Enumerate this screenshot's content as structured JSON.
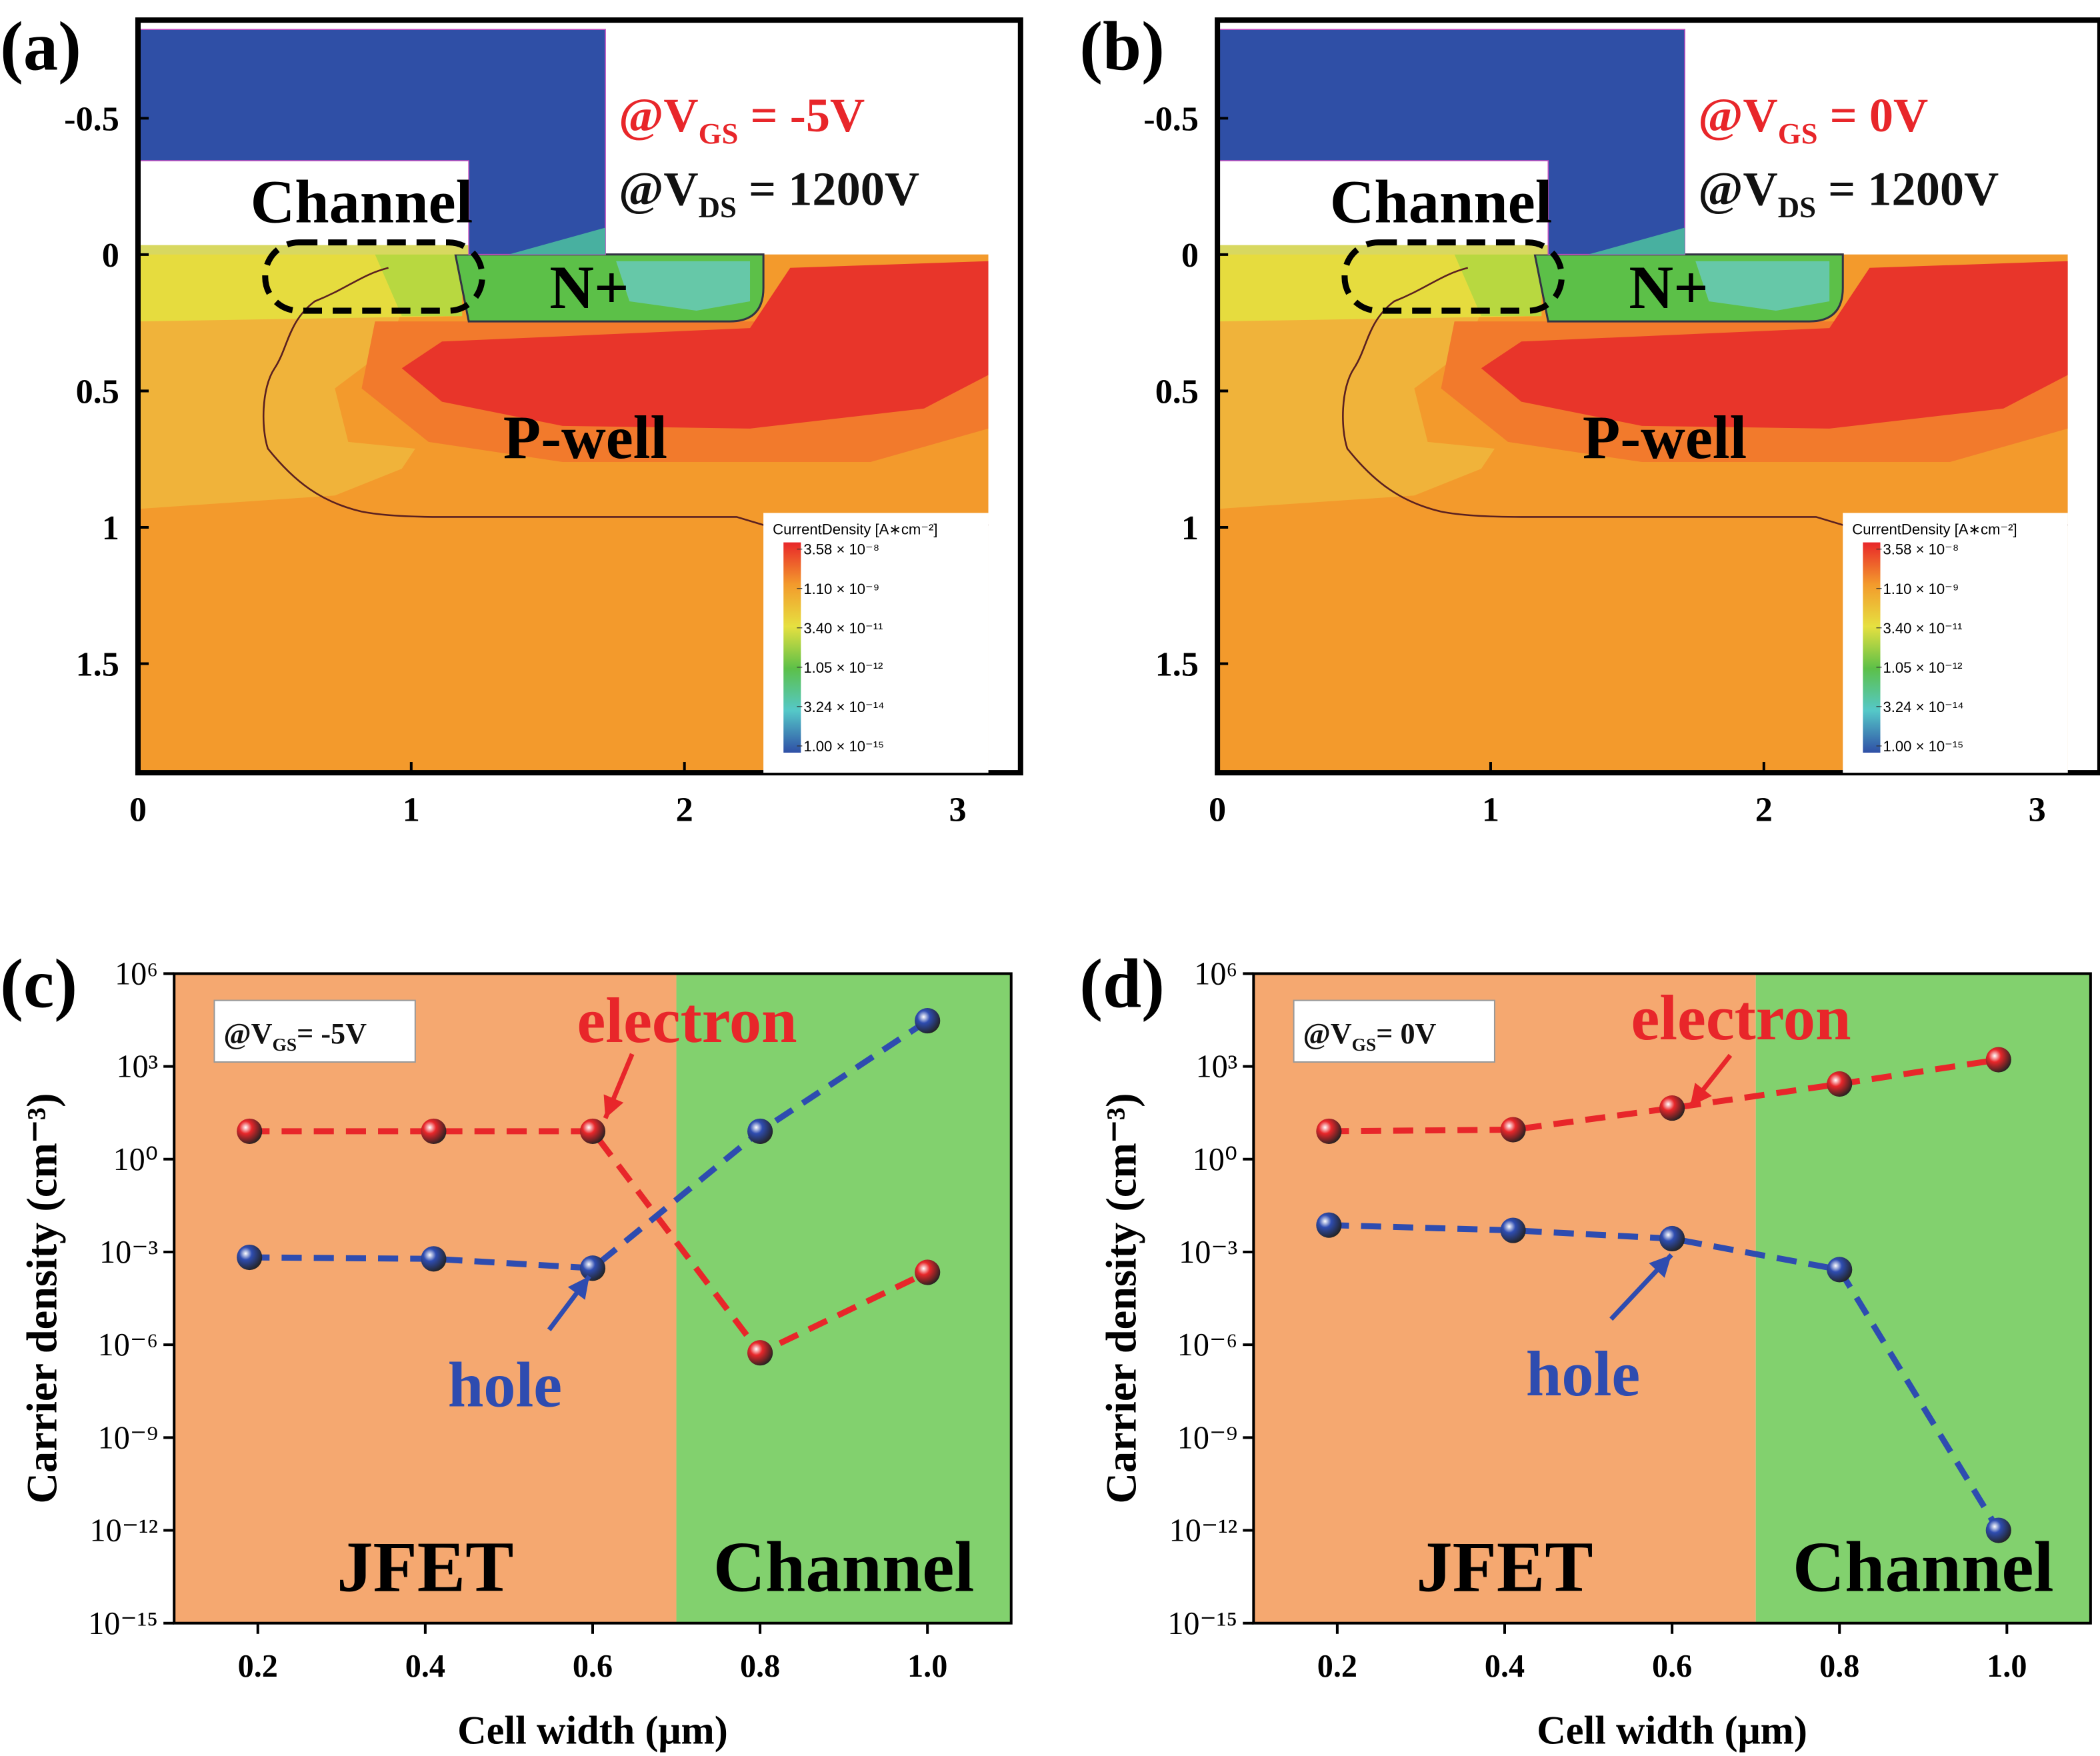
{
  "chart_data": [
    {
      "type": "contour",
      "panel_label": "(a)",
      "xlim": [
        0,
        3.23
      ],
      "ylim": [
        -0.86,
        1.9
      ],
      "xticks": [
        0,
        1,
        2,
        3
      ],
      "yticks": [
        -0.5,
        0,
        0.5,
        1,
        1.5
      ],
      "region_labels": [
        "Channel",
        "N+",
        "P-well"
      ],
      "bias_labels": [
        {
          "parts": [
            "@V",
            "GS",
            " = -5V"
          ],
          "color": "#e8262a"
        },
        {
          "parts": [
            "@V",
            "DS",
            " = 1200V"
          ],
          "color": "#111111"
        }
      ],
      "colorbar": {
        "title": "CurrentDensity [A∗cm⁻²]",
        "colors": [
          "#e8262a",
          "#f39a2c",
          "#e6e040",
          "#5cc048",
          "#55c8c8",
          "#2f4fa6"
        ],
        "ticks": [
          {
            "value": 3.58e-08,
            "label": "3.58 × 10⁻⁸"
          },
          {
            "value": 1.1e-09,
            "label": "1.10 × 10⁻⁹"
          },
          {
            "value": 3.4e-11,
            "label": "3.40 × 10⁻¹¹"
          },
          {
            "value": 1.05e-12,
            "label": "1.05 × 10⁻¹²"
          },
          {
            "value": 3.24e-14,
            "label": "3.24 × 10⁻¹⁴"
          },
          {
            "value": 1e-15,
            "label": "1.00 × 10⁻¹⁵"
          }
        ]
      }
    },
    {
      "type": "contour",
      "panel_label": "(b)",
      "xlim": [
        0,
        3.23
      ],
      "ylim": [
        -0.86,
        1.9
      ],
      "xticks": [
        0,
        1,
        2,
        3
      ],
      "yticks": [
        -0.5,
        0,
        0.5,
        1,
        1.5
      ],
      "region_labels": [
        "Channel",
        "N+",
        "P-well"
      ],
      "bias_labels": [
        {
          "parts": [
            "@V",
            "GS",
            " = 0V"
          ],
          "color": "#e8262a"
        },
        {
          "parts": [
            "@V",
            "DS",
            " = 1200V"
          ],
          "color": "#111111"
        }
      ],
      "colorbar": {
        "title": "CurrentDensity [A∗cm⁻²]",
        "colors": [
          "#e8262a",
          "#f39a2c",
          "#e6e040",
          "#5cc048",
          "#55c8c8",
          "#2f4fa6"
        ],
        "ticks": [
          {
            "value": 3.58e-08,
            "label": "3.58 × 10⁻⁸"
          },
          {
            "value": 1.1e-09,
            "label": "1.10 × 10⁻⁹"
          },
          {
            "value": 3.4e-11,
            "label": "3.40 × 10⁻¹¹"
          },
          {
            "value": 1.05e-12,
            "label": "1.05 × 10⁻¹²"
          },
          {
            "value": 3.24e-14,
            "label": "3.24 × 10⁻¹⁴"
          },
          {
            "value": 1e-15,
            "label": "1.00 × 10⁻¹⁵"
          }
        ]
      }
    },
    {
      "type": "line",
      "panel_label": "(c)",
      "xlabel": "Cell width (μm)",
      "ylabel": "Carrier density (cm⁻³)",
      "log_y": true,
      "xlim": [
        0.1,
        1.1
      ],
      "ylim": [
        1e-15,
        1000000.0
      ],
      "xticks": [
        0.2,
        0.4,
        0.6,
        0.8,
        {
          "value": 1,
          "label": "1.0"
        }
      ],
      "yticks": [
        {
          "value": 1e-15,
          "label": "10⁻¹⁵"
        },
        {
          "value": 1e-12,
          "label": "10⁻¹²"
        },
        {
          "value": 1e-09,
          "label": "10⁻⁹"
        },
        {
          "value": 1e-06,
          "label": "10⁻⁶"
        },
        {
          "value": 0.001,
          "label": "10⁻³"
        },
        {
          "value": 1,
          "label": "10⁰"
        },
        {
          "value": 1000.0,
          "label": "10³"
        },
        {
          "value": 1000000.0,
          "label": "10⁶"
        }
      ],
      "regions": [
        {
          "name": "JFET",
          "from": 0.1,
          "to": 0.7,
          "color": "#f5a870"
        },
        {
          "name": "Channel",
          "from": 0.7,
          "to": 1.1,
          "color": "#82d16e"
        }
      ],
      "annotation": [
        "@V",
        "GS",
        "= -5V"
      ],
      "x": [
        0.19,
        0.41,
        0.6,
        0.8,
        1.0
      ],
      "series": [
        {
          "name": "electron",
          "color": "#e8262a",
          "values": [
            8,
            8,
            8,
            5.5e-07,
            0.00022
          ]
        },
        {
          "name": "hole",
          "color": "#2e4cb0",
          "values": [
            0.00067,
            0.0006,
            0.0003,
            8,
            30000.0
          ]
        }
      ]
    },
    {
      "type": "line",
      "panel_label": "(d)",
      "xlabel": "Cell width (μm)",
      "ylabel": "Carrier density (cm⁻³)",
      "log_y": true,
      "xlim": [
        0.1,
        1.1
      ],
      "ylim": [
        1e-15,
        1000000.0
      ],
      "xticks": [
        0.2,
        0.4,
        0.6,
        0.8,
        {
          "value": 1,
          "label": "1.0"
        }
      ],
      "yticks": [
        {
          "value": 1e-15,
          "label": "10⁻¹⁵"
        },
        {
          "value": 1e-12,
          "label": "10⁻¹²"
        },
        {
          "value": 1e-09,
          "label": "10⁻⁹"
        },
        {
          "value": 1e-06,
          "label": "10⁻⁶"
        },
        {
          "value": 0.001,
          "label": "10⁻³"
        },
        {
          "value": 1,
          "label": "10⁰"
        },
        {
          "value": 1000.0,
          "label": "10³"
        },
        {
          "value": 1000000.0,
          "label": "10⁶"
        }
      ],
      "regions": [
        {
          "name": "JFET",
          "from": 0.1,
          "to": 0.7,
          "color": "#f5a870"
        },
        {
          "name": "Channel",
          "from": 0.7,
          "to": 1.1,
          "color": "#82d16e"
        }
      ],
      "annotation": [
        "@V",
        "GS",
        "= 0V"
      ],
      "x": [
        0.19,
        0.41,
        0.6,
        0.8,
        0.99
      ],
      "series": [
        {
          "name": "electron",
          "color": "#e8262a",
          "values": [
            8,
            9,
            45,
            270,
            1650
          ]
        },
        {
          "name": "hole",
          "color": "#2e4cb0",
          "values": [
            0.0074,
            0.005,
            0.0027,
            0.00027,
            1e-12
          ]
        }
      ]
    }
  ]
}
